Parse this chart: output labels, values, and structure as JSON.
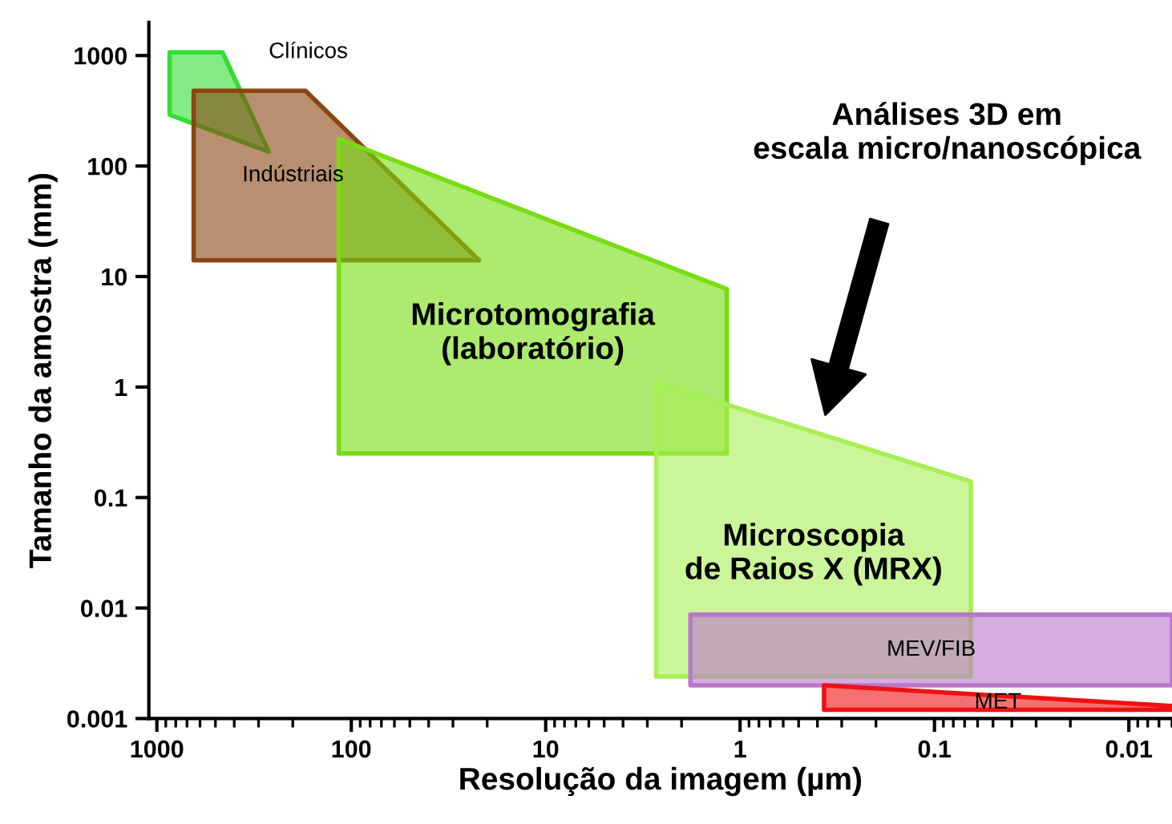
{
  "chart_data": {
    "type": "area",
    "xlabel": "Resolução da imagem (µm)",
    "ylabel": "Tamanho da amostra (mm)",
    "log": "xy",
    "xlim": [
      1100,
      0.006
    ],
    "ylim": [
      0.001,
      2000
    ],
    "xticks": [
      1000,
      100,
      10,
      1,
      0.1,
      0.01
    ],
    "yticks": [
      1000,
      100,
      10,
      1,
      0.1,
      0.01,
      0.001
    ],
    "grid": false,
    "legend": false,
    "series": [
      {
        "name": "Clínicos",
        "color": "#33dd33",
        "x": [
          860,
          460,
          266,
          860
        ],
        "values": [
          1070,
          1070,
          135,
          291
        ]
      },
      {
        "name": "Indústriais",
        "color": "#8b4513",
        "x": [
          647,
          172,
          22,
          647
        ],
        "values": [
          480,
          480,
          14,
          14
        ]
      },
      {
        "name": "Microtomografia\n(laboratório)",
        "color": "#77dd11",
        "x": [
          116,
          1.17,
          1.17,
          116
        ],
        "values": [
          176,
          7.7,
          0.25,
          0.25
        ]
      },
      {
        "name": "Microscopia\nde Raios X (MRX)",
        "color": "#a8ee55",
        "x": [
          2.7,
          0.065,
          0.065,
          2.7
        ],
        "values": [
          1.1,
          0.14,
          0.0024,
          0.0024
        ]
      },
      {
        "name": "MEV/FIB",
        "color": "#bb77cc",
        "x": [
          1.8,
          0.006,
          0.006,
          1.8
        ],
        "values": [
          0.0087,
          0.0087,
          0.002,
          0.002
        ]
      },
      {
        "name": "MET",
        "color": "#ee1111",
        "x": [
          0.37,
          0.006,
          0.006,
          0.37
        ],
        "values": [
          0.002,
          0.0013,
          0.0012,
          0.0012
        ]
      }
    ],
    "annotations": [
      "Análises 3D em\nescala micro/nanoscópica"
    ]
  }
}
